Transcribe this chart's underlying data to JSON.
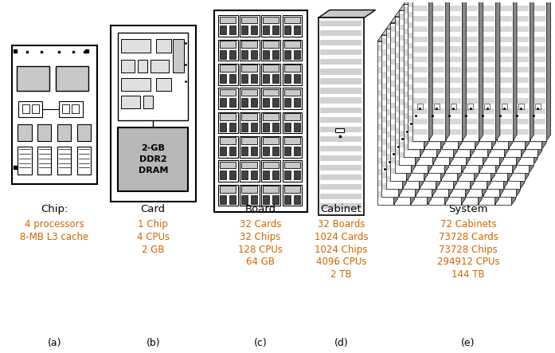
{
  "background_color": "#ffffff",
  "text_color": "#000000",
  "title_color": "#000000",
  "detail_color": "#cc6600",
  "label_color": "#000000",
  "gray_fill": "#c8c8c8",
  "light_gray": "#e0e0e0",
  "dram_gray": "#b8b8b8",
  "dark_gray": "#888888",
  "components": [
    {
      "name": "Chip",
      "label": "(a)",
      "title": "Chip:",
      "details": [
        "4 processors",
        "8-MB L3 cache"
      ]
    },
    {
      "name": "Card",
      "label": "(b)",
      "title": "Card",
      "details": [
        "1 Chip",
        "4 CPUs",
        "2 GB"
      ]
    },
    {
      "name": "Board",
      "label": "(c)",
      "title": "Board",
      "details": [
        "32 Cards",
        "32 Chips",
        "128 CPUs",
        "64 GB"
      ]
    },
    {
      "name": "Cabinet",
      "label": "(d)",
      "title": "Cabinet",
      "details": [
        "32 Boards",
        "1024 Cards",
        "1024 Chips",
        "4096 CPUs",
        "2 TB"
      ]
    },
    {
      "name": "System",
      "label": "(e)",
      "title": "System",
      "details": [
        "72 Cabinets",
        "73728 Cards",
        "73728 Chips",
        "294912 CPUs",
        "144 TB"
      ]
    }
  ]
}
